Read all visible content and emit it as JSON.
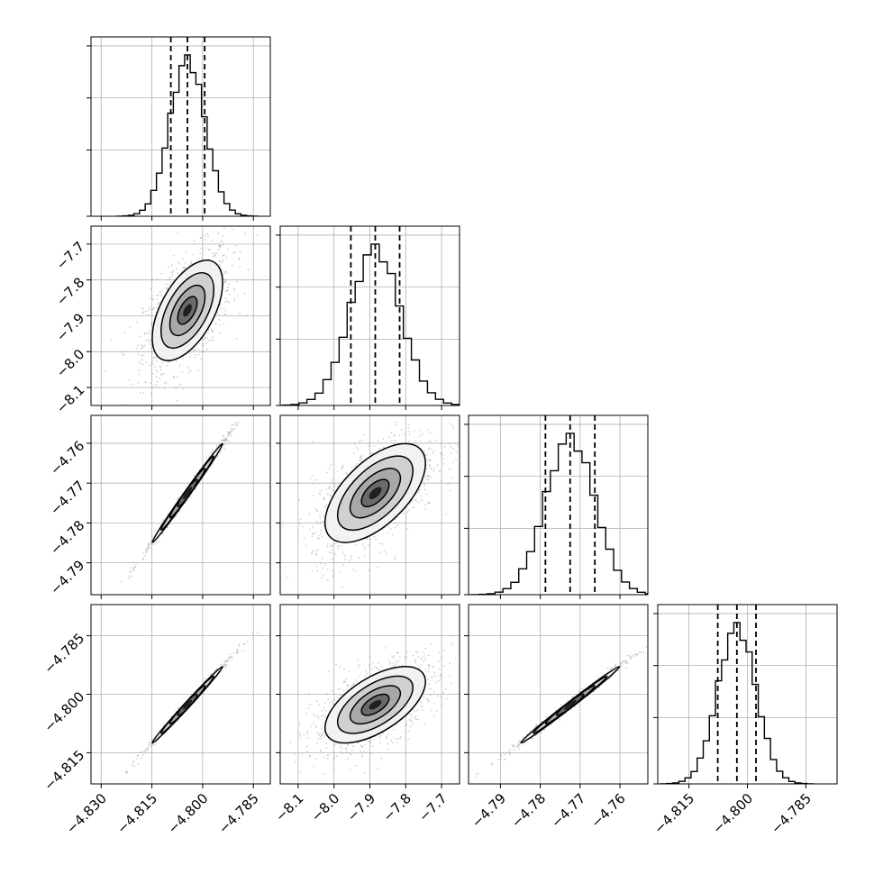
{
  "chart_data": {
    "type": "corner",
    "description_of_dims": "4x4 lower-triangular corner plot of posterior samples; diagonal = 1D histograms with 16/50/84% quantile lines, off-diagonal = 2D density with contours",
    "dims": [
      {
        "range": [
          -4.833,
          -4.78
        ],
        "mean": -4.8045,
        "sd": 0.0052,
        "quantiles": [
          -4.8094,
          -4.8045,
          -4.7994
        ],
        "ticks": [
          -4.83,
          -4.815,
          -4.8,
          -4.785
        ],
        "tick_labels": [
          "−4.830",
          "−4.815",
          "−4.800",
          "−4.785"
        ]
      },
      {
        "range": [
          -8.15,
          -7.65
        ],
        "mean": -7.885,
        "sd": 0.07,
        "quantiles": [
          -7.953,
          -7.885,
          -7.817
        ],
        "ticks": [
          -8.1,
          -8.0,
          -7.9,
          -7.8,
          -7.7
        ],
        "tick_labels": [
          "−8.1",
          "−8.0",
          "−7.9",
          "−7.8",
          "−7.7"
        ]
      },
      {
        "range": [
          -4.798,
          -4.753
        ],
        "mean": -4.7725,
        "sd": 0.0062,
        "quantiles": [
          -4.7787,
          -4.7725,
          -4.7663
        ],
        "ticks": [
          -4.79,
          -4.78,
          -4.77,
          -4.76
        ],
        "tick_labels": [
          "−4.79",
          "−4.78",
          "−4.77",
          "−4.76"
        ]
      },
      {
        "range": [
          -4.823,
          -4.777
        ],
        "mean": -4.8027,
        "sd": 0.0049,
        "quantiles": [
          -4.8076,
          -4.8027,
          -4.7978
        ],
        "ticks": [
          -4.815,
          -4.8,
          -4.785
        ],
        "tick_labels": [
          "−4.815",
          "−4.800",
          "−4.785"
        ]
      }
    ],
    "correlations": [
      [
        1.0,
        0.55,
        0.995,
        0.996
      ],
      [
        0.55,
        1.0,
        0.6,
        0.6
      ],
      [
        0.995,
        0.6,
        1.0,
        0.995
      ],
      [
        0.996,
        0.6,
        0.995,
        1.0
      ]
    ],
    "grid": true,
    "style": {
      "hist_color": "#000000",
      "quantile_color": "#000000",
      "grid_color": "#b0b0b0",
      "scatter_color": "#9a9a9a"
    }
  }
}
